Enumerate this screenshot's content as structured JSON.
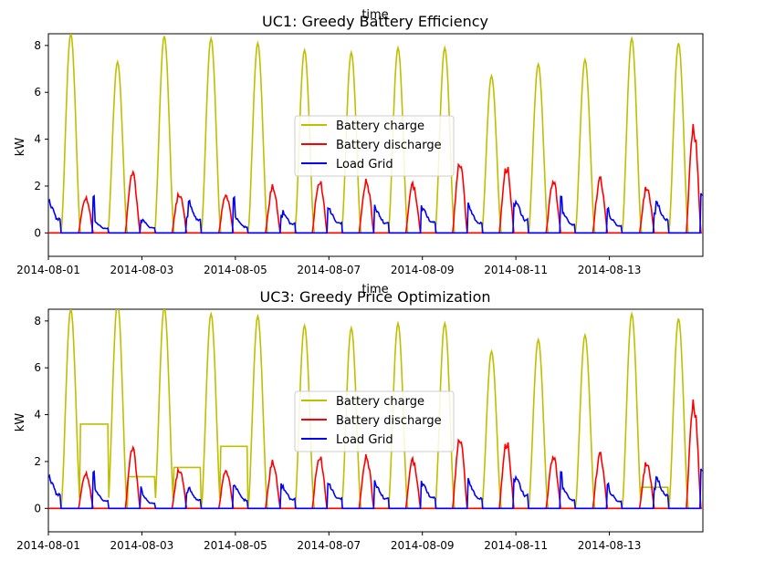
{
  "chart_data": [
    {
      "type": "line",
      "title": "UC1: Greedy Battery Efficiency",
      "xlabel": "time",
      "ylabel": "kW",
      "xlim": [
        "2014-08-01",
        "2014-08-15T00:00"
      ],
      "ylim": [
        -1,
        8.5
      ],
      "x_ticks": [
        "2014-08-01",
        "2014-08-03",
        "2014-08-05",
        "2014-08-07",
        "2014-08-09",
        "2014-08-11",
        "2014-08-13"
      ],
      "y_ticks": [
        0,
        2,
        4,
        6,
        8
      ],
      "legend": "center",
      "grid": false,
      "series": [
        {
          "name": "Battery charge",
          "color": "#bfbf00",
          "peaks": [
            [
              "2014-08-01",
              8.5
            ],
            [
              "2014-08-02",
              7.3
            ],
            [
              "2014-08-03",
              8.4
            ],
            [
              "2014-08-04",
              8.3
            ],
            [
              "2014-08-05",
              8.1
            ],
            [
              "2014-08-06",
              7.8
            ],
            [
              "2014-08-07",
              7.7
            ],
            [
              "2014-08-08",
              7.9
            ],
            [
              "2014-08-09",
              7.9
            ],
            [
              "2014-08-10",
              6.7
            ],
            [
              "2014-08-11",
              7.2
            ],
            [
              "2014-08-12",
              7.4
            ],
            [
              "2014-08-13",
              8.3
            ],
            [
              "2014-08-14",
              8.1
            ]
          ]
        },
        {
          "name": "Battery discharge",
          "color": "#ff0000",
          "peaks": [
            [
              "2014-08-01",
              1.6
            ],
            [
              "2014-08-02",
              2.7
            ],
            [
              "2014-08-03",
              1.8
            ],
            [
              "2014-08-04",
              1.75
            ],
            [
              "2014-08-05",
              2.1
            ],
            [
              "2014-08-06",
              2.4
            ],
            [
              "2014-08-07",
              2.4
            ],
            [
              "2014-08-08",
              2.2
            ],
            [
              "2014-08-09",
              3.1
            ],
            [
              "2014-08-10",
              3.0
            ],
            [
              "2014-08-11",
              2.3
            ],
            [
              "2014-08-12",
              2.4
            ],
            [
              "2014-08-13",
              2.1
            ],
            [
              "2014-08-14",
              4.8
            ]
          ]
        },
        {
          "name": "Load Grid",
          "color": "#0000ff",
          "peaks": [
            [
              "2014-08-01",
              1.8
            ],
            [
              "2014-08-02",
              0.6
            ],
            [
              "2014-08-03",
              0.7
            ],
            [
              "2014-08-04",
              1.7
            ],
            [
              "2014-08-05",
              0.8
            ],
            [
              "2014-08-06",
              1.2
            ],
            [
              "2014-08-07",
              1.3
            ],
            [
              "2014-08-08",
              1.3
            ],
            [
              "2014-08-09",
              1.4
            ],
            [
              "2014-08-10",
              1.3
            ],
            [
              "2014-08-11",
              1.7
            ],
            [
              "2014-08-12",
              1.1
            ],
            [
              "2014-08-13",
              0.9
            ],
            [
              "2014-08-14",
              1.7
            ]
          ]
        }
      ]
    },
    {
      "type": "line",
      "title": "UC3: Greedy Price Optimization",
      "xlabel": "time",
      "ylabel": "kW",
      "xlim": [
        "2014-08-01",
        "2014-08-15T00:00"
      ],
      "ylim": [
        -1,
        8.5
      ],
      "x_ticks": [
        "2014-08-01",
        "2014-08-03",
        "2014-08-05",
        "2014-08-07",
        "2014-08-09",
        "2014-08-11",
        "2014-08-13"
      ],
      "y_ticks": [
        0,
        2,
        4,
        6,
        8
      ],
      "legend": "center",
      "grid": false,
      "series": [
        {
          "name": "Battery charge",
          "color": "#bfbf00",
          "peaks": [
            [
              "2014-08-01",
              8.5
            ],
            [
              "2014-08-02",
              8.8
            ],
            [
              "2014-08-03",
              8.6
            ],
            [
              "2014-08-04",
              8.3
            ],
            [
              "2014-08-05",
              8.2
            ],
            [
              "2014-08-06",
              7.8
            ],
            [
              "2014-08-07",
              7.7
            ],
            [
              "2014-08-08",
              7.9
            ],
            [
              "2014-08-09",
              7.9
            ],
            [
              "2014-08-10",
              6.7
            ],
            [
              "2014-08-11",
              7.2
            ],
            [
              "2014-08-12",
              7.4
            ],
            [
              "2014-08-13",
              8.3
            ],
            [
              "2014-08-14",
              8.1
            ]
          ],
          "night_plateaus": [
            3.6,
            1.35,
            1.75,
            2.65,
            0,
            0,
            0,
            0,
            0,
            0,
            0,
            0,
            0.9,
            0
          ]
        },
        {
          "name": "Battery discharge",
          "color": "#ff0000",
          "peaks": [
            [
              "2014-08-01",
              1.6
            ],
            [
              "2014-08-02",
              2.7
            ],
            [
              "2014-08-03",
              1.8
            ],
            [
              "2014-08-04",
              1.75
            ],
            [
              "2014-08-05",
              2.1
            ],
            [
              "2014-08-06",
              2.4
            ],
            [
              "2014-08-07",
              2.4
            ],
            [
              "2014-08-08",
              2.2
            ],
            [
              "2014-08-09",
              3.1
            ],
            [
              "2014-08-10",
              3.0
            ],
            [
              "2014-08-11",
              2.3
            ],
            [
              "2014-08-12",
              2.4
            ],
            [
              "2014-08-13",
              2.1
            ],
            [
              "2014-08-14",
              4.8
            ]
          ]
        },
        {
          "name": "Load Grid",
          "color": "#0000ff",
          "peaks": [
            [
              "2014-08-01",
              1.8
            ],
            [
              "2014-08-02",
              1.0
            ],
            [
              "2014-08-03",
              0.7
            ],
            [
              "2014-08-04",
              1.1
            ],
            [
              "2014-08-05",
              1.1
            ],
            [
              "2014-08-06",
              1.2
            ],
            [
              "2014-08-07",
              1.3
            ],
            [
              "2014-08-08",
              1.3
            ],
            [
              "2014-08-09",
              1.4
            ],
            [
              "2014-08-10",
              1.3
            ],
            [
              "2014-08-11",
              1.7
            ],
            [
              "2014-08-12",
              1.1
            ],
            [
              "2014-08-13",
              0.9
            ],
            [
              "2014-08-14",
              1.7
            ]
          ]
        }
      ]
    }
  ]
}
